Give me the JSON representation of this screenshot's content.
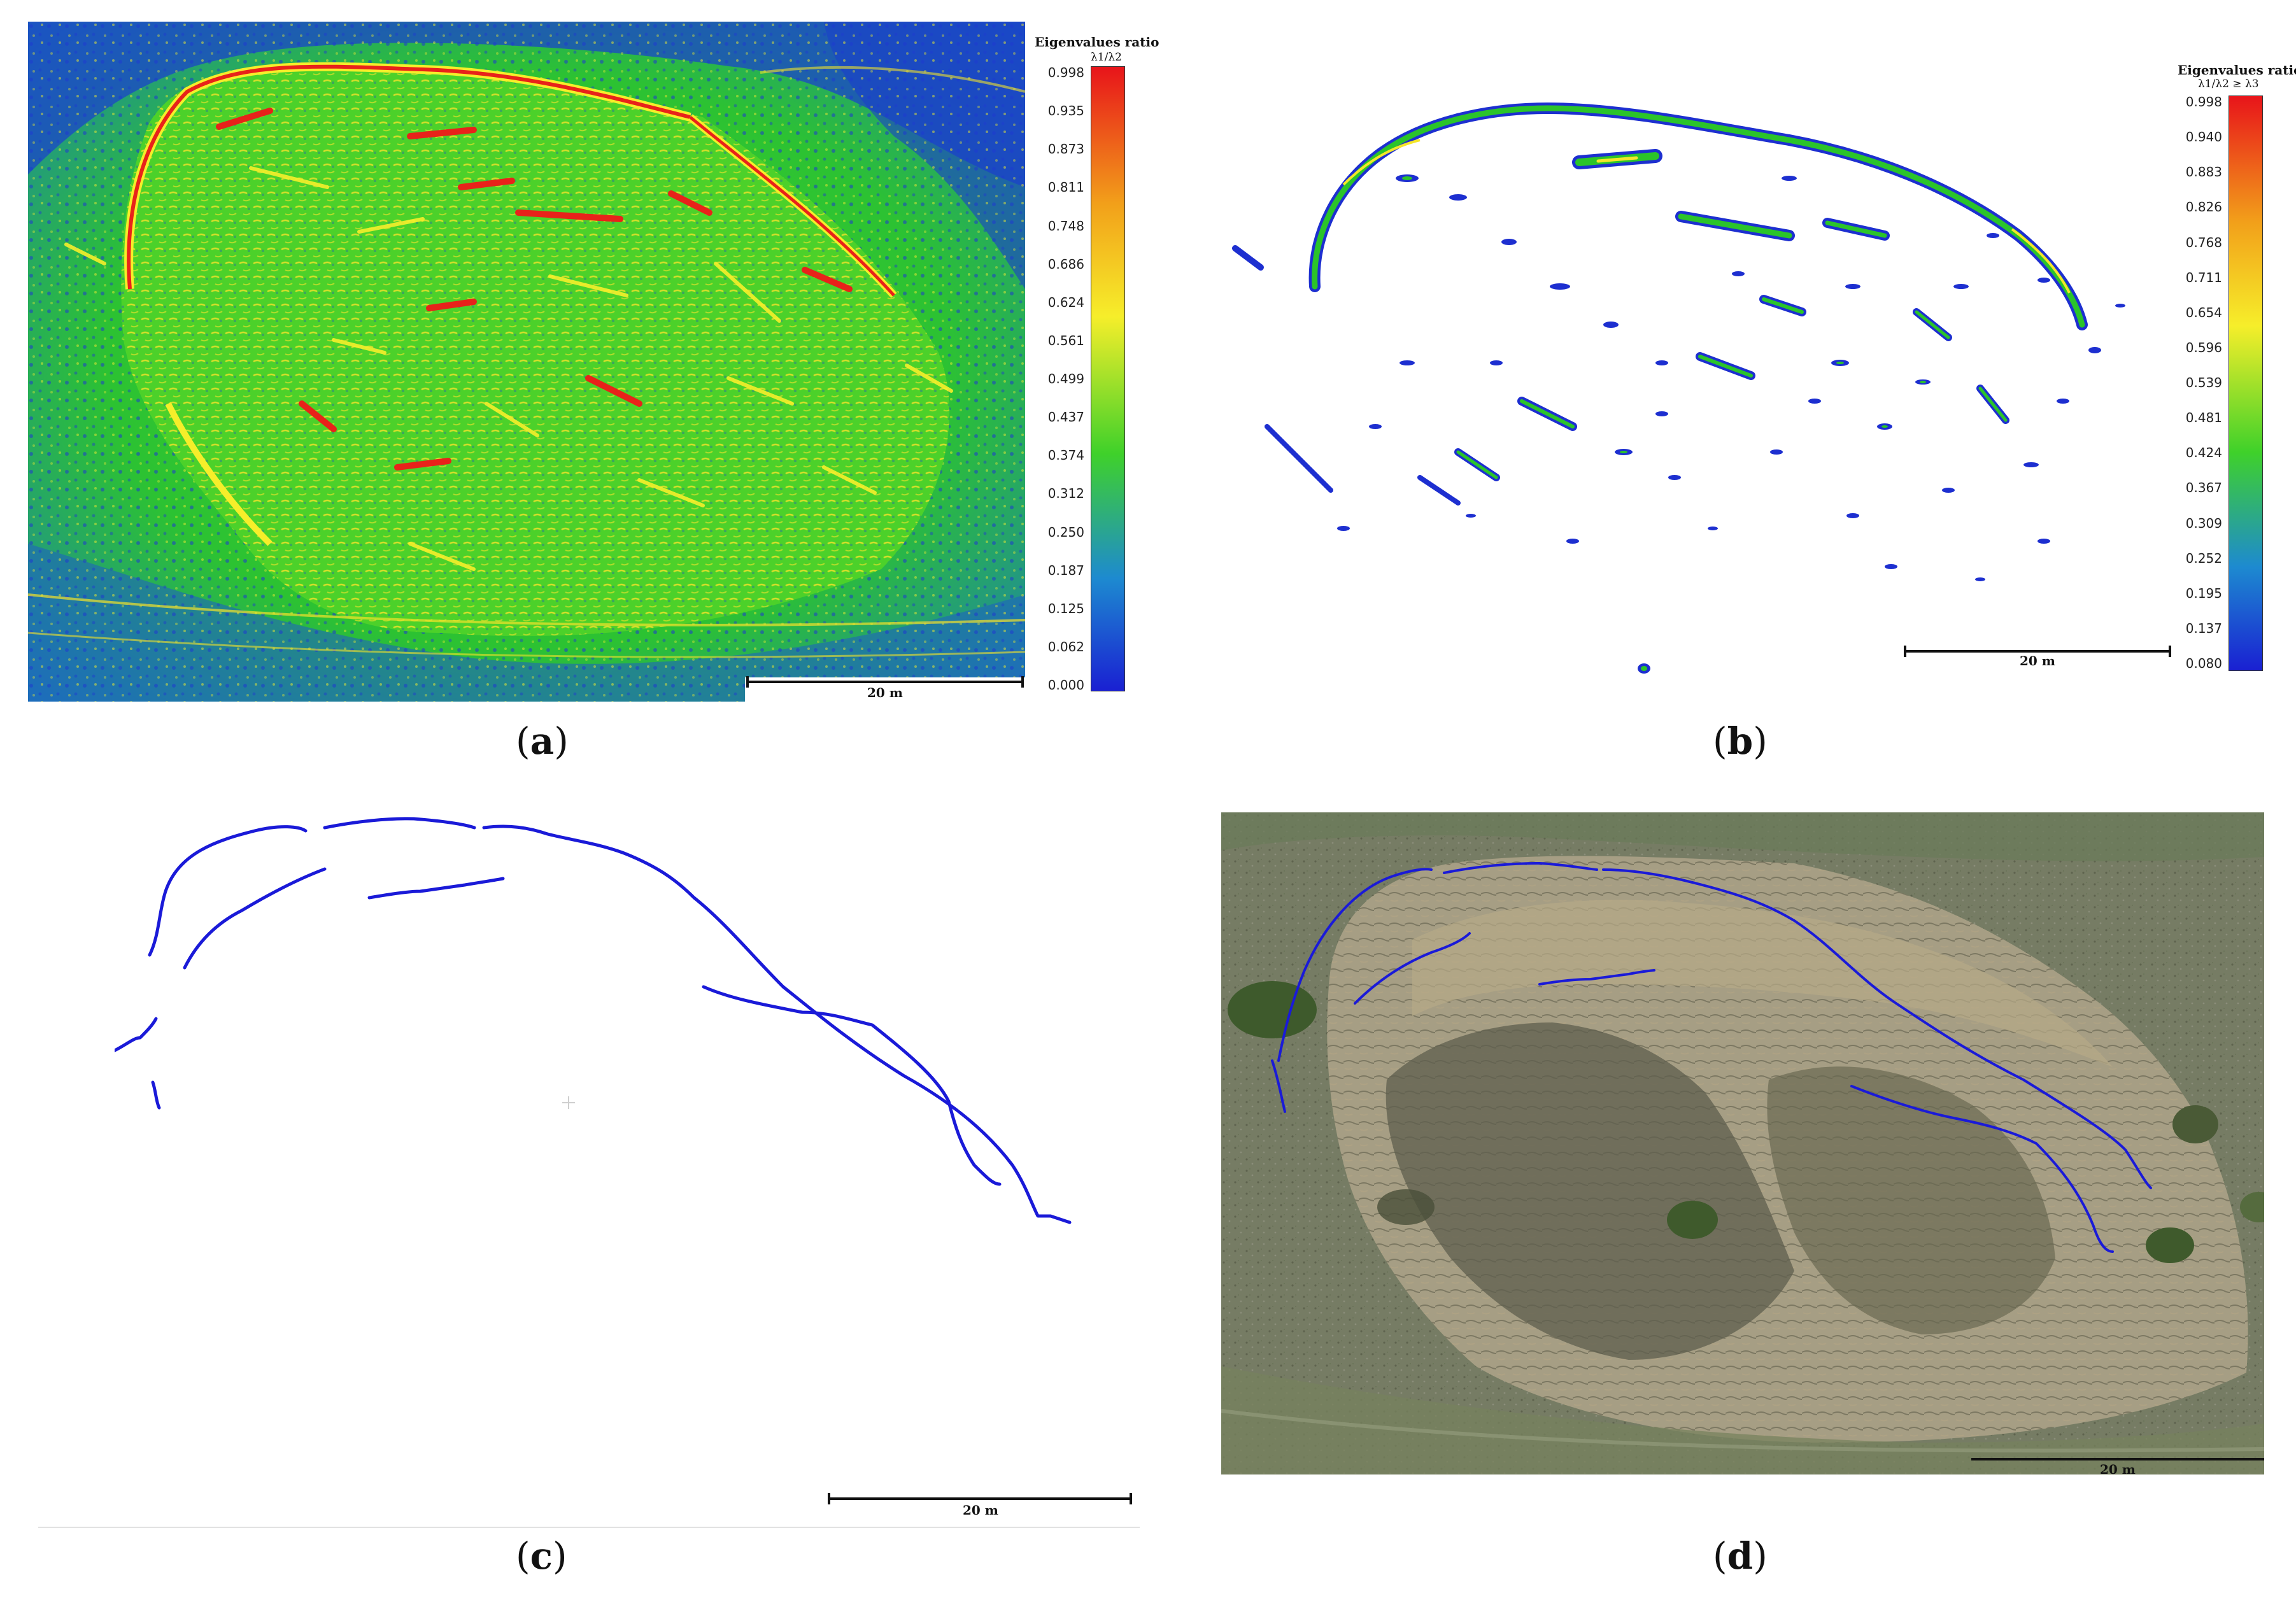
{
  "panels": {
    "a": {
      "caption_open": "(",
      "caption_letter": "a",
      "caption_close": ")",
      "legend_title": "Eigenvalues ratio",
      "legend_sub": "λ1/λ2",
      "ticks": [
        "0.998",
        "0.935",
        "0.873",
        "0.811",
        "0.748",
        "0.686",
        "0.624",
        "0.561",
        "0.499",
        "0.437",
        "0.374",
        "0.312",
        "0.250",
        "0.187",
        "0.125",
        "0.062",
        "0.000"
      ],
      "scale_label": "20 m",
      "colors": {
        "low": "#1634c9",
        "mid": "#2fc92a",
        "high": "#f01a10"
      }
    },
    "b": {
      "caption_open": "(",
      "caption_letter": "b",
      "caption_close": ")",
      "legend_title": "Eigenvalues ratio",
      "legend_sub": "λ1/λ2 ≥ λ3",
      "ticks": [
        "0.998",
        "0.940",
        "0.883",
        "0.826",
        "0.768",
        "0.711",
        "0.654",
        "0.596",
        "0.539",
        "0.481",
        "0.424",
        "0.367",
        "0.309",
        "0.252",
        "0.195",
        "0.137",
        "0.080"
      ],
      "scale_label": "20 m"
    },
    "c": {
      "caption_open": "(",
      "caption_letter": "c",
      "caption_close": ")",
      "scale_label": "20 m",
      "line_color": "#1a1ad8"
    },
    "d": {
      "caption_open": "(",
      "caption_letter": "d",
      "caption_close": ")",
      "scale_label": "20 m",
      "line_color": "#1a1ad8"
    }
  }
}
